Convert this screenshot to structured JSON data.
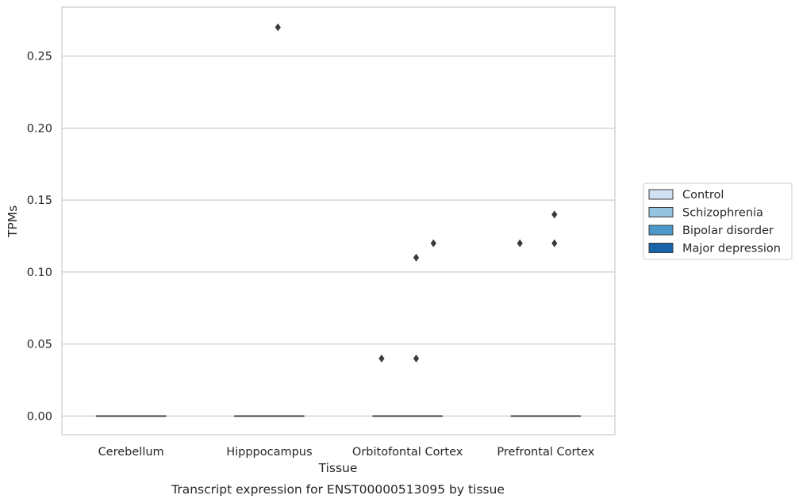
{
  "chart_data": {
    "type": "box",
    "title": "",
    "xlabel": "Tissue",
    "ylabel": "TPMs",
    "caption": "Transcript expression for ENST00000513095 by tissue",
    "categories": [
      "Cerebellum",
      "Hipppocampus",
      "Orbitofontal Cortex",
      "Prefrontal Cortex"
    ],
    "ylim": [
      -0.013,
      0.284
    ],
    "yticks": [
      0.0,
      0.05,
      0.1,
      0.15,
      0.2,
      0.25
    ],
    "ytick_labels": [
      "0.00",
      "0.05",
      "0.10",
      "0.15",
      "0.20",
      "0.25"
    ],
    "grid": true,
    "legend_position": "right",
    "series": [
      {
        "name": "Control",
        "color": "#d0e1f2",
        "boxes": [
          {
            "category": "Cerebellum",
            "q1": 0,
            "median": 0,
            "q3": 0,
            "whisker_low": 0,
            "whisker_high": 0,
            "outliers": []
          },
          {
            "category": "Hipppocampus",
            "q1": 0,
            "median": 0,
            "q3": 0,
            "whisker_low": 0,
            "whisker_high": 0,
            "outliers": []
          },
          {
            "category": "Orbitofontal Cortex",
            "q1": 0,
            "median": 0,
            "q3": 0,
            "whisker_low": 0,
            "whisker_high": 0,
            "outliers": [
              0.04
            ]
          },
          {
            "category": "Prefrontal Cortex",
            "q1": 0,
            "median": 0,
            "q3": 0,
            "whisker_low": 0,
            "whisker_high": 0,
            "outliers": [
              0.12
            ]
          }
        ]
      },
      {
        "name": "Schizophrenia",
        "color": "#94c4df",
        "boxes": [
          {
            "category": "Cerebellum",
            "q1": 0,
            "median": 0,
            "q3": 0,
            "whisker_low": 0,
            "whisker_high": 0,
            "outliers": []
          },
          {
            "category": "Hipppocampus",
            "q1": 0,
            "median": 0,
            "q3": 0,
            "whisker_low": 0,
            "whisker_high": 0,
            "outliers": []
          },
          {
            "category": "Orbitofontal Cortex",
            "q1": 0,
            "median": 0,
            "q3": 0,
            "whisker_low": 0,
            "whisker_high": 0,
            "outliers": []
          },
          {
            "category": "Prefrontal Cortex",
            "q1": 0,
            "median": 0,
            "q3": 0,
            "whisker_low": 0,
            "whisker_high": 0,
            "outliers": []
          }
        ]
      },
      {
        "name": "Bipolar disorder",
        "color": "#4b98c9",
        "boxes": [
          {
            "category": "Cerebellum",
            "q1": 0,
            "median": 0,
            "q3": 0,
            "whisker_low": 0,
            "whisker_high": 0,
            "outliers": []
          },
          {
            "category": "Hipppocampus",
            "q1": 0,
            "median": 0,
            "q3": 0,
            "whisker_low": 0,
            "whisker_high": 0,
            "outliers": [
              0.27
            ]
          },
          {
            "category": "Orbitofontal Cortex",
            "q1": 0,
            "median": 0,
            "q3": 0,
            "whisker_low": 0,
            "whisker_high": 0,
            "outliers": [
              0.04,
              0.11
            ]
          },
          {
            "category": "Prefrontal Cortex",
            "q1": 0,
            "median": 0,
            "q3": 0,
            "whisker_low": 0,
            "whisker_high": 0,
            "outliers": [
              0.12,
              0.14
            ]
          }
        ]
      },
      {
        "name": "Major depression",
        "color": "#1764ab",
        "boxes": [
          {
            "category": "Cerebellum",
            "q1": 0,
            "median": 0,
            "q3": 0,
            "whisker_low": 0,
            "whisker_high": 0,
            "outliers": []
          },
          {
            "category": "Hipppocampus",
            "q1": 0,
            "median": 0,
            "q3": 0,
            "whisker_low": 0,
            "whisker_high": 0,
            "outliers": []
          },
          {
            "category": "Orbitofontal Cortex",
            "q1": 0,
            "median": 0,
            "q3": 0,
            "whisker_low": 0,
            "whisker_high": 0,
            "outliers": [
              0.12
            ]
          },
          {
            "category": "Prefrontal Cortex",
            "q1": 0,
            "median": 0,
            "q3": 0,
            "whisker_low": 0,
            "whisker_high": 0,
            "outliers": []
          }
        ]
      }
    ],
    "colors": {
      "grid": "#cccccc",
      "frame": "#cccccc",
      "text": "#262626",
      "marker": "#3a3a3a",
      "median_line": "#3a3a3a"
    }
  }
}
